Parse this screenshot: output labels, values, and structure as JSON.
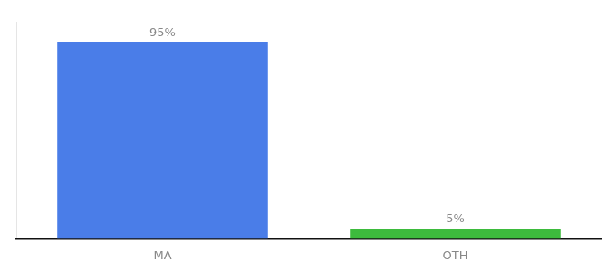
{
  "chart_data": {
    "type": "bar",
    "categories": [
      "MA",
      "OTH"
    ],
    "values": [
      95,
      5
    ],
    "value_labels": [
      "95%",
      "5%"
    ],
    "colors": [
      "#4a7de8",
      "#3dbb3d"
    ],
    "ylim": [
      0,
      105
    ],
    "grid": false,
    "data_labels": true,
    "tick_labels": "x"
  }
}
